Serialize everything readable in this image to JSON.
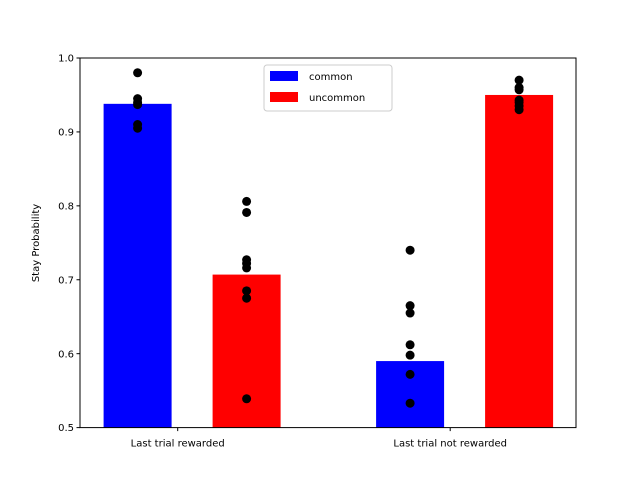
{
  "chart_data": {
    "type": "bar",
    "ylabel": "Stay Probability",
    "xlabel": "",
    "ylim": [
      0.5,
      1.0
    ],
    "yticks": [
      "0.5",
      "0.6",
      "0.7",
      "0.8",
      "0.9",
      "1.0"
    ],
    "categories": [
      "Last trial rewarded",
      "Last trial not rewarded"
    ],
    "series": [
      {
        "name": "common",
        "color": "#0000ff",
        "values": [
          0.938,
          0.59
        ],
        "points": [
          [
            0.98,
            0.945,
            0.94,
            0.937,
            0.91,
            0.905
          ],
          [
            0.74,
            0.665,
            0.655,
            0.612,
            0.598,
            0.572,
            0.533
          ]
        ]
      },
      {
        "name": "uncommon",
        "color": "#ff0000",
        "values": [
          0.707,
          0.95
        ],
        "points": [
          [
            0.806,
            0.791,
            0.727,
            0.722,
            0.716,
            0.685,
            0.675,
            0.539
          ],
          [
            0.97,
            0.96,
            0.957,
            0.943,
            0.94,
            0.935,
            0.93
          ]
        ]
      }
    ],
    "point_color": "#000000",
    "legend_position": "upper center",
    "grid": false
  }
}
